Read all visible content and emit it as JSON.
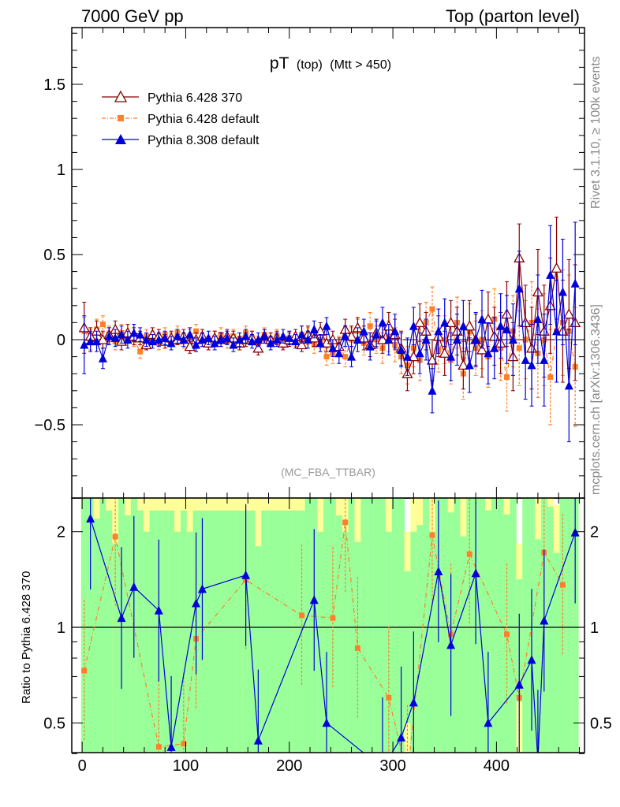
{
  "header": {
    "left_title": "7000 GeV pp",
    "right_title": "Top (parton level)"
  },
  "side_text": {
    "rivet": "Rivet 3.1.10, ≥ 100k events",
    "source": "mcplots.cern.ch [arXiv:1306.3436]"
  },
  "colors": {
    "ref": "#8b0000",
    "p6def": "#ff7f2a",
    "p8": "#0000dd",
    "band_green": "#99ff99",
    "band_yellow": "#ffff99"
  },
  "chart_data": [
    {
      "type": "scatter",
      "panel": "main",
      "title": "pT",
      "title_sub": "(top)",
      "title_cut": "(Mtt > 450)",
      "watermark": "(MC_FBA_TTBAR)",
      "xlabel": "",
      "ylabel": "",
      "xlim": [
        -10,
        485
      ],
      "ylim": [
        -0.9,
        1.85
      ],
      "yticks": [
        -0.5,
        0,
        0.5,
        1,
        1.5
      ],
      "ytick_labels": [
        "−0.5",
        "0",
        "0.5",
        "1",
        "1.5"
      ],
      "legend_position": "top-left",
      "series": [
        {
          "name": "Pythia 6.428 370",
          "marker": "open-triangle",
          "x": [
            2,
            8,
            14,
            20,
            26,
            32,
            38,
            44,
            50,
            56,
            62,
            68,
            74,
            80,
            86,
            92,
            98,
            104,
            110,
            116,
            122,
            128,
            134,
            140,
            146,
            152,
            158,
            164,
            170,
            176,
            182,
            188,
            194,
            200,
            206,
            212,
            218,
            224,
            230,
            236,
            242,
            248,
            254,
            260,
            266,
            272,
            278,
            284,
            290,
            296,
            302,
            308,
            314,
            320,
            326,
            332,
            338,
            344,
            350,
            356,
            362,
            368,
            374,
            380,
            386,
            392,
            398,
            404,
            410,
            416,
            422,
            428,
            434,
            440,
            446,
            452,
            458,
            464,
            470,
            476
          ],
          "y": [
            0.07,
            0.02,
            0.05,
            0.0,
            0.03,
            0.06,
            -0.01,
            0.04,
            0.02,
            0.01,
            -0.03,
            0.03,
            0.02,
            -0.01,
            0.01,
            0.0,
            0.02,
            -0.04,
            0.0,
            0.02,
            -0.02,
            0.01,
            0.0,
            0.02,
            0.01,
            -0.02,
            0.0,
            0.01,
            -0.05,
            0.02,
            0.0,
            0.01,
            -0.02,
            0.0,
            0.02,
            -0.03,
            0.03,
            0.01,
            0.05,
            -0.02,
            0.0,
            -0.04,
            0.06,
            0.02,
            0.07,
            0.01,
            -0.03,
            0.04,
            0.0,
            0.08,
            0.03,
            -0.05,
            -0.2,
            -0.1,
            0.1,
            0.05,
            -0.12,
            0.02,
            -0.08,
            0.1,
            0.05,
            -0.15,
            0.08,
            0.0,
            -0.06,
            0.12,
            0.02,
            -0.02,
            0.15,
            -0.1,
            0.48,
            0.1,
            -0.05,
            0.28,
            0.05,
            0.2,
            0.42,
            0.05,
            0.15,
            0.1
          ],
          "yerr": [
            0.15,
            0.05,
            0.06,
            0.05,
            0.04,
            0.05,
            0.05,
            0.05,
            0.05,
            0.04,
            0.03,
            0.04,
            0.04,
            0.04,
            0.04,
            0.03,
            0.04,
            0.04,
            0.04,
            0.04,
            0.04,
            0.04,
            0.04,
            0.04,
            0.04,
            0.04,
            0.04,
            0.04,
            0.04,
            0.04,
            0.04,
            0.04,
            0.04,
            0.04,
            0.04,
            0.04,
            0.05,
            0.05,
            0.05,
            0.05,
            0.05,
            0.05,
            0.06,
            0.06,
            0.06,
            0.07,
            0.07,
            0.08,
            0.08,
            0.08,
            0.09,
            0.1,
            0.1,
            0.1,
            0.11,
            0.11,
            0.12,
            0.12,
            0.13,
            0.13,
            0.14,
            0.14,
            0.15,
            0.15,
            0.16,
            0.16,
            0.17,
            0.18,
            0.19,
            0.2,
            0.2,
            0.22,
            0.24,
            0.25,
            0.27,
            0.28,
            0.3,
            0.3,
            0.32,
            0.34
          ]
        },
        {
          "name": "Pythia 6.428 default",
          "marker": "square",
          "x": [
            2,
            8,
            14,
            20,
            26,
            32,
            38,
            44,
            50,
            56,
            62,
            68,
            74,
            80,
            86,
            92,
            98,
            104,
            110,
            116,
            122,
            128,
            134,
            140,
            146,
            152,
            158,
            164,
            170,
            176,
            182,
            188,
            194,
            200,
            206,
            212,
            218,
            224,
            230,
            236,
            242,
            248,
            254,
            260,
            266,
            272,
            278,
            284,
            290,
            296,
            302,
            308,
            314,
            320,
            326,
            332,
            338,
            344,
            350,
            356,
            362,
            368,
            374,
            380,
            386,
            392,
            398,
            404,
            410,
            416,
            422,
            428,
            434,
            440,
            446,
            452,
            458,
            464,
            470,
            476
          ],
          "y": [
            0.05,
            0.0,
            0.06,
            0.09,
            0.03,
            -0.01,
            0.04,
            0.02,
            0.0,
            -0.07,
            0.02,
            0.01,
            -0.02,
            0.03,
            0.0,
            0.04,
            -0.01,
            0.02,
            0.05,
            0.0,
            -0.02,
            0.01,
            0.03,
            -0.01,
            0.02,
            0.0,
            0.04,
            0.01,
            -0.02,
            0.03,
            0.0,
            0.02,
            -0.01,
            0.01,
            0.0,
            0.03,
            0.02,
            -0.03,
            0.0,
            -0.1,
            -0.08,
            -0.04,
            -0.1,
            0.0,
            0.05,
            -0.02,
            0.08,
            0.0,
            -0.05,
            0.02,
            -0.03,
            -0.1,
            -0.15,
            -0.05,
            -0.12,
            0.1,
            0.18,
            -0.06,
            0.0,
            -0.12,
            0.1,
            -0.2,
            0.05,
            -0.05,
            0.0,
            -0.1,
            0.12,
            -0.05,
            -0.22,
            0.05,
            -0.05,
            0.0,
            0.1,
            -0.08,
            0.0,
            -0.22,
            0.05,
            0.1,
            0.05,
            -0.16
          ],
          "yerr": [
            0.08,
            0.06,
            0.06,
            0.05,
            0.05,
            0.05,
            0.05,
            0.04,
            0.04,
            0.04,
            0.04,
            0.04,
            0.04,
            0.04,
            0.04,
            0.04,
            0.04,
            0.04,
            0.04,
            0.04,
            0.04,
            0.04,
            0.04,
            0.04,
            0.04,
            0.04,
            0.04,
            0.04,
            0.04,
            0.04,
            0.04,
            0.04,
            0.04,
            0.04,
            0.04,
            0.05,
            0.05,
            0.05,
            0.05,
            0.05,
            0.06,
            0.06,
            0.06,
            0.07,
            0.07,
            0.07,
            0.08,
            0.08,
            0.09,
            0.09,
            0.1,
            0.1,
            0.11,
            0.11,
            0.12,
            0.12,
            0.13,
            0.13,
            0.14,
            0.14,
            0.15,
            0.15,
            0.16,
            0.16,
            0.17,
            0.18,
            0.18,
            0.19,
            0.2,
            0.21,
            0.22,
            0.23,
            0.24,
            0.26,
            0.27,
            0.28,
            0.3,
            0.31,
            0.33,
            0.35
          ]
        },
        {
          "name": "Pythia 8.308 default",
          "marker": "filled-triangle",
          "x": [
            2,
            8,
            14,
            20,
            26,
            32,
            38,
            44,
            50,
            56,
            62,
            68,
            74,
            80,
            86,
            92,
            98,
            104,
            110,
            116,
            122,
            128,
            134,
            140,
            146,
            152,
            158,
            164,
            170,
            176,
            182,
            188,
            194,
            200,
            206,
            212,
            218,
            224,
            230,
            236,
            242,
            248,
            254,
            260,
            266,
            272,
            278,
            284,
            290,
            296,
            302,
            308,
            314,
            320,
            326,
            332,
            338,
            344,
            350,
            356,
            362,
            368,
            374,
            380,
            386,
            392,
            398,
            404,
            410,
            416,
            422,
            428,
            434,
            440,
            446,
            452,
            458,
            464,
            470,
            476
          ],
          "y": [
            -0.03,
            -0.01,
            -0.01,
            -0.11,
            0.02,
            0.01,
            0.03,
            0.0,
            0.04,
            0.03,
            0.0,
            -0.01,
            0.0,
            0.01,
            -0.02,
            0.02,
            0.0,
            0.03,
            -0.03,
            0.0,
            0.01,
            -0.02,
            0.0,
            0.01,
            -0.03,
            0.0,
            0.02,
            -0.01,
            0.0,
            0.02,
            -0.02,
            0.0,
            0.02,
            0.01,
            -0.01,
            0.03,
            0.0,
            0.06,
            -0.02,
            0.08,
            -0.05,
            -0.08,
            0.02,
            -0.1,
            0.0,
            0.05,
            -0.04,
            0.03,
            0.1,
            0.0,
            0.05,
            -0.06,
            -0.1,
            0.08,
            -0.08,
            0.0,
            -0.3,
            0.05,
            0.1,
            -0.1,
            0.0,
            0.08,
            -0.15,
            0.0,
            0.12,
            -0.08,
            -0.05,
            0.08,
            0.06,
            0.0,
            0.3,
            -0.12,
            -0.15,
            0.12,
            -0.12,
            0.38,
            0.05,
            0.28,
            -0.27,
            0.33
          ],
          "yerr": [
            0.17,
            0.06,
            0.06,
            0.06,
            0.05,
            0.05,
            0.05,
            0.05,
            0.05,
            0.04,
            0.04,
            0.04,
            0.04,
            0.04,
            0.04,
            0.04,
            0.04,
            0.04,
            0.04,
            0.04,
            0.04,
            0.04,
            0.04,
            0.04,
            0.04,
            0.04,
            0.04,
            0.04,
            0.04,
            0.04,
            0.04,
            0.04,
            0.04,
            0.04,
            0.04,
            0.05,
            0.05,
            0.05,
            0.05,
            0.05,
            0.05,
            0.06,
            0.06,
            0.06,
            0.07,
            0.07,
            0.08,
            0.08,
            0.09,
            0.09,
            0.1,
            0.1,
            0.11,
            0.11,
            0.12,
            0.12,
            0.13,
            0.13,
            0.14,
            0.14,
            0.15,
            0.15,
            0.16,
            0.16,
            0.17,
            0.18,
            0.18,
            0.19,
            0.2,
            0.21,
            0.22,
            0.23,
            0.24,
            0.26,
            0.27,
            0.29,
            0.3,
            0.31,
            0.33,
            0.36
          ]
        }
      ]
    },
    {
      "type": "scatter",
      "panel": "ratio",
      "ylabel": "Ratio to Pythia 6.428 370",
      "xlim": [
        -10,
        485
      ],
      "ylim": [
        0.35,
        2.25
      ],
      "xticks": [
        0,
        100,
        200,
        300,
        400
      ],
      "xtick_labels": [
        "0",
        "100",
        "200",
        "300",
        "400"
      ],
      "yticks": [
        0.5,
        1,
        2
      ],
      "ytick_labels": [
        "0.5",
        "1",
        "2"
      ],
      "series": [
        {
          "name": "Pythia 6.428 default",
          "x": [
            2,
            32,
            74,
            98,
            110,
            158,
            212,
            242,
            254,
            266,
            296,
            314,
            338,
            356,
            374,
            410,
            422,
            446,
            464
          ],
          "y": [
            0.73,
            1.93,
            0.42,
            0.43,
            0.92,
            1.41,
            1.09,
            1.07,
            2.14,
            0.86,
            0.6,
            0.34,
            1.95,
            0.95,
            1.7,
            0.95,
            0.6,
            1.72,
            1.36
          ]
        },
        {
          "name": "Pythia 8.308 default",
          "x": [
            8,
            38,
            50,
            74,
            86,
            110,
            116,
            158,
            170,
            224,
            236,
            290,
            308,
            320,
            344,
            356,
            380,
            392,
            422,
            434,
            440,
            446,
            476
          ],
          "y": [
            2.2,
            1.07,
            1.34,
            1.13,
            0.42,
            1.19,
            1.32,
            1.46,
            0.44,
            1.22,
            0.5,
            0.36,
            0.45,
            0.58,
            1.5,
            0.88,
            1.48,
            0.5,
            0.66,
            0.79,
            0.38,
            1.05,
            1.99
          ]
        }
      ]
    }
  ]
}
